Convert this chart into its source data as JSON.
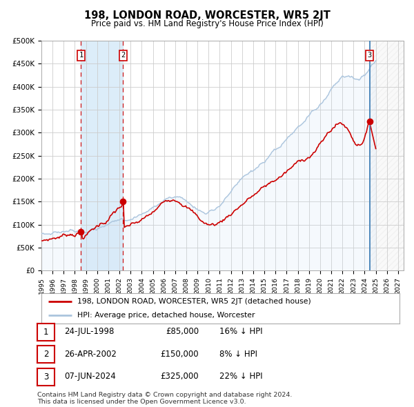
{
  "title": "198, LONDON ROAD, WORCESTER, WR5 2JT",
  "subtitle": "Price paid vs. HM Land Registry's House Price Index (HPI)",
  "ylim": [
    0,
    500000
  ],
  "yticks": [
    0,
    50000,
    100000,
    150000,
    200000,
    250000,
    300000,
    350000,
    400000,
    450000,
    500000
  ],
  "ytick_labels": [
    "£0",
    "£50K",
    "£100K",
    "£150K",
    "£200K",
    "£250K",
    "£300K",
    "£350K",
    "£400K",
    "£450K",
    "£500K"
  ],
  "hpi_color": "#aac4dd",
  "hpi_fill_color": "#cce0f5",
  "price_color": "#cc0000",
  "bg_color": "#ffffff",
  "grid_color": "#cccccc",
  "sale1_date": 1998.557,
  "sale1_price": 85000,
  "sale2_date": 2002.32,
  "sale2_price": 150000,
  "sale3_date": 2024.44,
  "sale3_price": 325000,
  "legend_line1": "198, LONDON ROAD, WORCESTER, WR5 2JT (detached house)",
  "legend_line2": "HPI: Average price, detached house, Worcester",
  "table_row1": [
    "1",
    "24-JUL-1998",
    "£85,000",
    "16% ↓ HPI"
  ],
  "table_row2": [
    "2",
    "26-APR-2002",
    "£150,000",
    "8% ↓ HPI"
  ],
  "table_row3": [
    "3",
    "07-JUN-2024",
    "£325,000",
    "22% ↓ HPI"
  ],
  "footnote1": "Contains HM Land Registry data © Crown copyright and database right 2024.",
  "footnote2": "This data is licensed under the Open Government Licence v3.0."
}
